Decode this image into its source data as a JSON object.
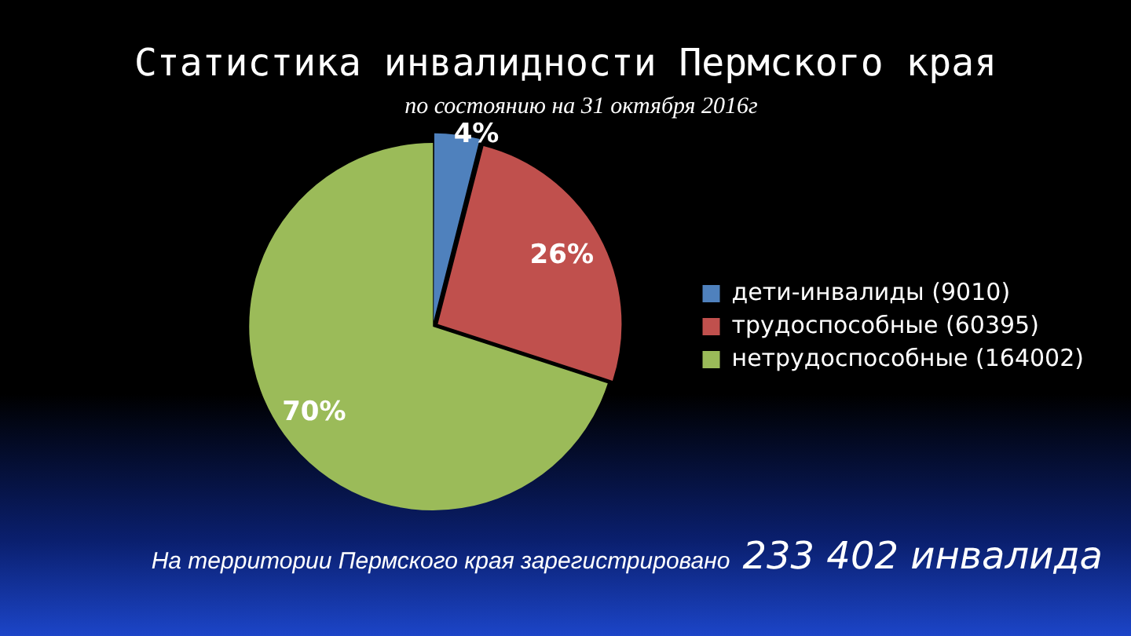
{
  "chart_data": {
    "type": "pie",
    "title": "Статистика инвалидности Пермского края",
    "subtitle": "по состоянию на 31 октября 2016г",
    "categories": [
      "дети-инвалиды (9010)",
      "трудоспособные (60395)",
      "нетрудоспособные (164002)"
    ],
    "values": [
      4,
      26,
      70
    ],
    "colors": [
      "#4f81bd",
      "#c0504d",
      "#9bbb59"
    ],
    "value_labels": [
      "4%",
      "26%",
      "70%"
    ],
    "legend": "right",
    "annotations": [
      "На территории Пермского края зарегистрировано",
      "233 402 инвалида"
    ]
  }
}
